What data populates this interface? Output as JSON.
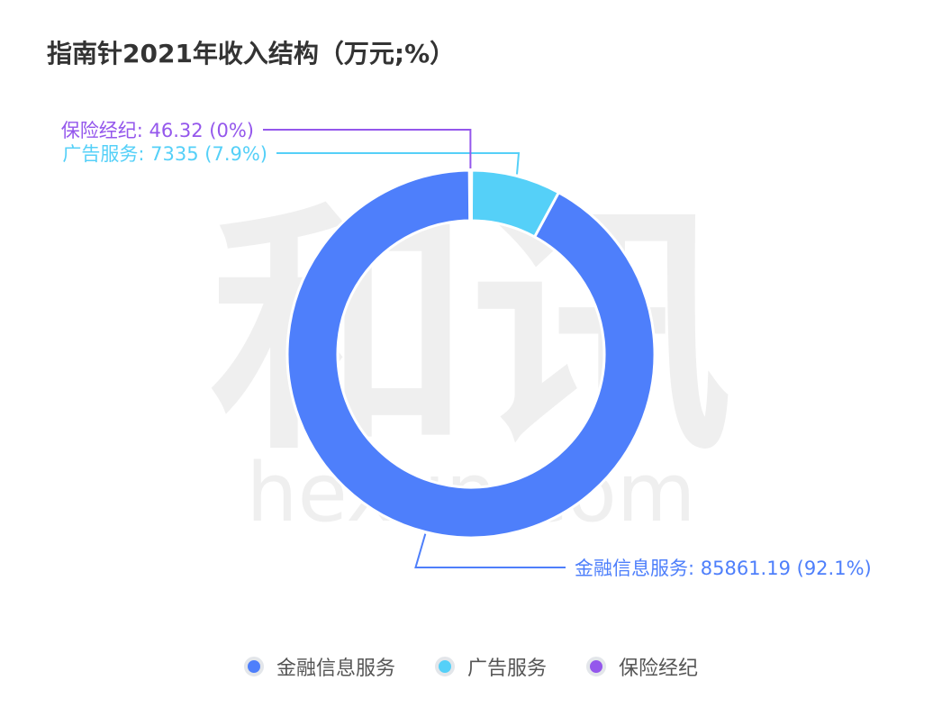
{
  "chart_data": {
    "type": "pie",
    "variant": "donut",
    "title": "指南针2021年收入结构（万元;%）",
    "watermark": {
      "text": "和讯",
      "subtext": "hexun.com"
    },
    "slices": [
      {
        "name": "金融信息服务",
        "value": 85861.19,
        "percent": "92.1%",
        "color": "#4e7ffb",
        "label": "金融信息服务: 85861.19 (92.1%)"
      },
      {
        "name": "广告服务",
        "value": 7335,
        "percent": "7.9%",
        "color": "#55d0f8",
        "label": "广告服务: 7335 (7.9%)"
      },
      {
        "name": "保险经纪",
        "value": 46.32,
        "percent": "0%",
        "color": "#9457ec",
        "label": "保险经纪: 46.32 (0%)"
      }
    ],
    "legend": {
      "position": "bottom",
      "entries": [
        "金融信息服务",
        "广告服务",
        "保险经纪"
      ]
    }
  }
}
